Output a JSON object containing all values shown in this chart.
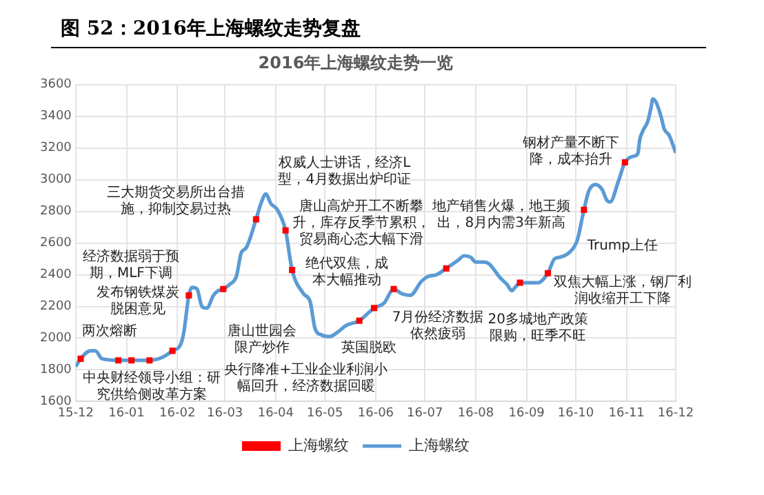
{
  "chart_data": {
    "type": "line",
    "title": "图 52：2016年上海螺纹走势复盘",
    "subtitle": "2016年上海螺纹走势一览",
    "xlim": [
      "2015-12-01",
      "2016-12-01"
    ],
    "xticks": [
      {
        "value": "2015-12-01",
        "label": "15-12"
      },
      {
        "value": "2016-01-01",
        "label": "16-01"
      },
      {
        "value": "2016-02-01",
        "label": "16-02"
      },
      {
        "value": "2016-03-01",
        "label": "16-03"
      },
      {
        "value": "2016-04-01",
        "label": "16-04"
      },
      {
        "value": "2016-05-01",
        "label": "16-05"
      },
      {
        "value": "2016-06-01",
        "label": "16-06"
      },
      {
        "value": "2016-07-01",
        "label": "16-07"
      },
      {
        "value": "2016-08-01",
        "label": "16-08"
      },
      {
        "value": "2016-09-01",
        "label": "16-09"
      },
      {
        "value": "2016-10-01",
        "label": "16-10"
      },
      {
        "value": "2016-11-01",
        "label": "16-11"
      },
      {
        "value": "2016-12-01",
        "label": "16-12"
      }
    ],
    "ylim": [
      1600,
      3600
    ],
    "yticks": [
      1600,
      1800,
      2000,
      2200,
      2400,
      2600,
      2800,
      3000,
      3200,
      3400,
      3600
    ],
    "grid": true,
    "legend": "bottom",
    "series": [
      {
        "name": "上海螺纹",
        "type": "scatter",
        "marker": "square",
        "color": "#ff0000",
        "x": [
          "2015-12-04",
          "2015-12-27",
          "2016-01-04",
          "2016-01-15",
          "2016-01-29",
          "2016-02-08",
          "2016-02-29",
          "2016-03-20",
          "2016-04-07",
          "2016-04-11",
          "2016-05-22",
          "2016-05-31",
          "2016-06-12",
          "2016-07-14",
          "2016-08-28",
          "2016-09-14",
          "2016-10-06",
          "2016-10-31"
        ],
        "values": [
          1870,
          1860,
          1860,
          1860,
          1920,
          2270,
          2310,
          2750,
          2680,
          2430,
          2110,
          2190,
          2310,
          2440,
          2350,
          2410,
          2810,
          3110
        ]
      },
      {
        "name": "上海螺纹",
        "type": "line",
        "marker": "none",
        "color": "#5b9bd5",
        "x": [
          "2015-12-01",
          "2015-12-04",
          "2015-12-10",
          "2015-12-13",
          "2015-12-17",
          "2015-12-27",
          "2016-01-04",
          "2016-01-15",
          "2016-01-23",
          "2016-01-29",
          "2016-02-03",
          "2016-02-05",
          "2016-02-08",
          "2016-02-10",
          "2016-02-13",
          "2016-02-16",
          "2016-02-19",
          "2016-02-23",
          "2016-02-26",
          "2016-02-29",
          "2016-03-04",
          "2016-03-08",
          "2016-03-11",
          "2016-03-14",
          "2016-03-20",
          "2016-03-23",
          "2016-03-26",
          "2016-03-29",
          "2016-04-02",
          "2016-04-07",
          "2016-04-11",
          "2016-04-18",
          "2016-04-22",
          "2016-04-25",
          "2016-04-29",
          "2016-05-04",
          "2016-05-09",
          "2016-05-14",
          "2016-05-22",
          "2016-05-31",
          "2016-06-06",
          "2016-06-12",
          "2016-06-17",
          "2016-06-22",
          "2016-06-29",
          "2016-07-03",
          "2016-07-08",
          "2016-07-14",
          "2016-07-21",
          "2016-07-25",
          "2016-07-29",
          "2016-08-01",
          "2016-08-06",
          "2016-08-09",
          "2016-08-16",
          "2016-08-20",
          "2016-08-23",
          "2016-08-25",
          "2016-08-28",
          "2016-09-08",
          "2016-09-14",
          "2016-09-18",
          "2016-09-21",
          "2016-09-27",
          "2016-10-02",
          "2016-10-06",
          "2016-10-09",
          "2016-10-13",
          "2016-10-17",
          "2016-10-20",
          "2016-10-22",
          "2016-10-27",
          "2016-10-31",
          "2016-11-03",
          "2016-11-06",
          "2016-11-08",
          "2016-11-09",
          "2016-11-11",
          "2016-11-14",
          "2016-11-16",
          "2016-11-17",
          "2016-11-19",
          "2016-11-22",
          "2016-11-24",
          "2016-11-27",
          "2016-12-01"
        ],
        "values": [
          1820,
          1870,
          1920,
          1920,
          1870,
          1860,
          1860,
          1860,
          1880,
          1920,
          1960,
          2040,
          2270,
          2320,
          2310,
          2200,
          2190,
          2270,
          2300,
          2310,
          2340,
          2390,
          2540,
          2570,
          2750,
          2850,
          2910,
          2850,
          2810,
          2680,
          2430,
          2280,
          2230,
          2060,
          2020,
          2010,
          2040,
          2080,
          2110,
          2190,
          2220,
          2310,
          2280,
          2270,
          2360,
          2390,
          2400,
          2440,
          2490,
          2520,
          2510,
          2480,
          2480,
          2470,
          2380,
          2340,
          2300,
          2320,
          2350,
          2350,
          2410,
          2500,
          2510,
          2540,
          2620,
          2810,
          2930,
          2970,
          2940,
          2870,
          2860,
          2990,
          3110,
          3140,
          3150,
          3170,
          3250,
          3310,
          3370,
          3460,
          3510,
          3490,
          3400,
          3320,
          3280,
          3170
        ]
      }
    ],
    "annotations": [
      {
        "text": "两次熔断",
        "x": "2015-12-04",
        "y": 1870
      },
      {
        "text": "中央财经领导小组：研究供给侧改革方案",
        "x": "2015-12-27",
        "y": 1860
      },
      "发布钢铁煤炭脱困意见",
      "央行降准+工业企业利润小幅回升，经济数据回暖",
      {
        "text": "经济数据弱于预期，MLF下调",
        "x": "2016-02-08",
        "y": 2270
      },
      {
        "text": "三大期货交易所出台措施，抑制交易过热",
        "x": "2016-03-20",
        "y": 2750
      },
      "唐山世园会限产炒作",
      "权威人士讲话，经济L型，4月数据出炉印证",
      {
        "text": "唐山高炉开工不断攀升，库存反季节累积，贸易商心态大幅下滑",
        "x": "2016-04-07",
        "y": 2680
      },
      {
        "text": "英国脱欧",
        "x": "2016-05-22",
        "y": 2110
      },
      {
        "text": "绝代双焦，成本大幅推动",
        "x": "2016-05-31",
        "y": 2190
      },
      {
        "text": "7月份经济数据依然疲弱",
        "x": "2016-06-12",
        "y": 2310
      },
      {
        "text": "地产销售火爆，地王频出，8月内需3年新高",
        "x": "2016-07-14",
        "y": 2440
      },
      {
        "text": "20多城地产政策限购，旺季不旺",
        "x": "2016-08-28",
        "y": 2350
      },
      {
        "text": "双焦大幅上涨，钢厂利润收缩开工下降",
        "x": "2016-09-14",
        "y": 2410
      },
      {
        "text": "Trump上任",
        "x": "2016-10-06",
        "y": 2810
      },
      {
        "text": "钢材产量不断下降，成本抬升",
        "x": "2016-10-31",
        "y": 3110
      }
    ]
  }
}
